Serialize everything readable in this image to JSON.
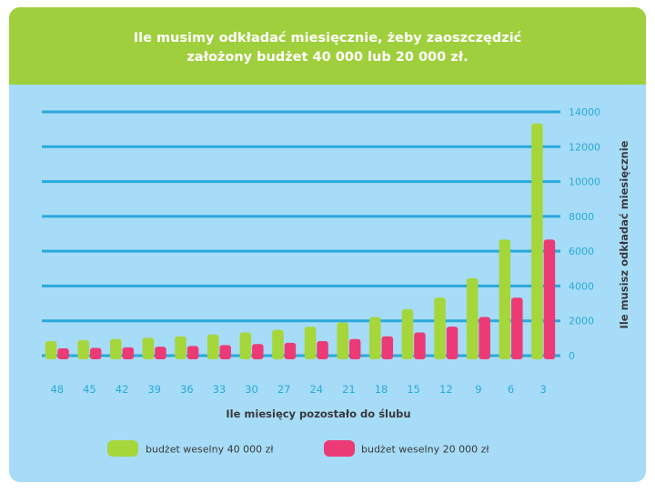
{
  "header": {
    "title_line1": "Ile musimy odkładać miesięcznie, żeby zaoszczędzić",
    "title_line2": "założony budżet 40 000 lub 20 000 zł."
  },
  "colors": {
    "header_bg": "#9fcf3c",
    "plot_bg": "#a6dcf7",
    "grid": "#29a9dc",
    "series_40k": "#a5d63a",
    "series_20k": "#ec3a76",
    "tick_text": "#29a9dc",
    "axis_title": "#3a3a3a"
  },
  "chart_data": {
    "type": "bar",
    "xlabel": "Ile miesięcy pozostało do ślubu",
    "ylabel": "Ile musisz odkładać miesięcznie",
    "ylim": [
      0,
      14000
    ],
    "yticks": [
      "0",
      "2000",
      "4000",
      "6000",
      "8000",
      "10000",
      "12000",
      "14000"
    ],
    "yaxis_position": "right",
    "grid": true,
    "legend_position": "bottom",
    "categories": [
      "48",
      "45",
      "42",
      "39",
      "36",
      "33",
      "30",
      "27",
      "24",
      "21",
      "18",
      "15",
      "12",
      "9",
      "6",
      "3"
    ],
    "series": [
      {
        "name": "budżet weselny 40 000 zł",
        "values": [
          833,
          889,
          952,
          1026,
          1111,
          1212,
          1333,
          1481,
          1667,
          1905,
          2222,
          2667,
          3333,
          4444,
          6667,
          13333
        ]
      },
      {
        "name": "budżet weselny 20 000 zł",
        "values": [
          417,
          444,
          476,
          513,
          556,
          606,
          667,
          741,
          833,
          952,
          1111,
          1333,
          1667,
          2222,
          3333,
          6667
        ]
      }
    ]
  }
}
